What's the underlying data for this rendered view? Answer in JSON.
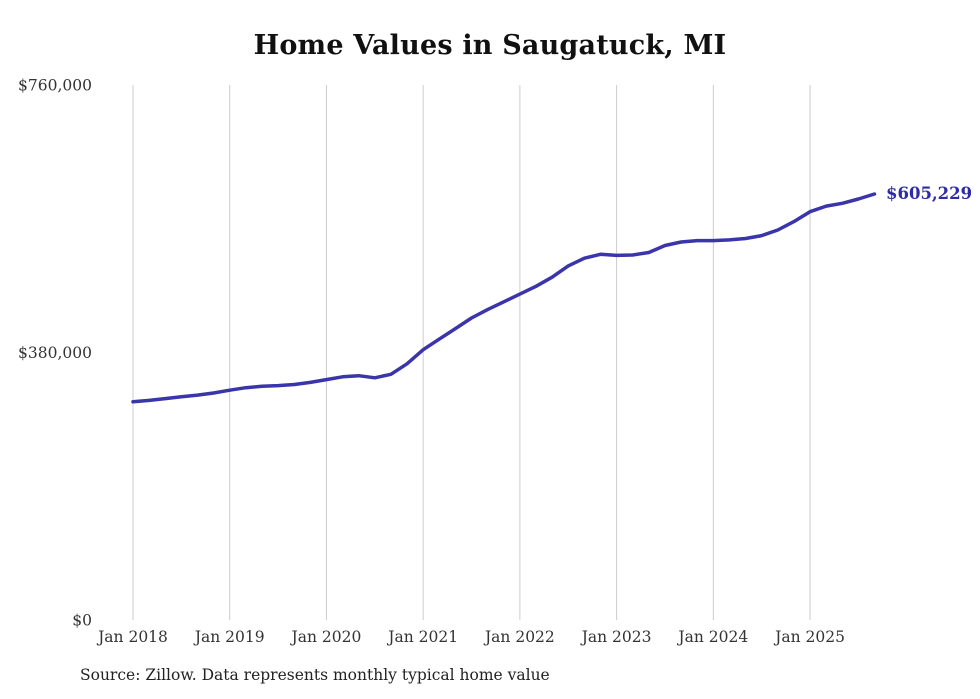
{
  "title": "Home Values in Saugatuck, MI",
  "source_note": "Source: Zillow. Data represents monthly typical home value",
  "latest_value_label": "$605,229",
  "colors": {
    "line": "#3a35aa",
    "latest_label": "#2f2ba8",
    "grid": "#cccccc",
    "tick_text": "#333333"
  },
  "chart_data": {
    "type": "line",
    "title": "Home Values in Saugatuck, MI",
    "xlabel": "",
    "ylabel": "",
    "ylim": [
      0,
      760000
    ],
    "grid": "vertical-only",
    "legend": "none",
    "x_unit": "months since Jan 2018",
    "y_ticks": [
      {
        "v": 0,
        "label": "$0"
      },
      {
        "v": 380000,
        "label": "$380,000"
      },
      {
        "v": 760000,
        "label": "$760,000"
      }
    ],
    "x_ticks": [
      {
        "m": 0,
        "label": "Jan 2018"
      },
      {
        "m": 12,
        "label": "Jan 2019"
      },
      {
        "m": 24,
        "label": "Jan 2020"
      },
      {
        "m": 36,
        "label": "Jan 2021"
      },
      {
        "m": 48,
        "label": "Jan 2022"
      },
      {
        "m": 60,
        "label": "Jan 2023"
      },
      {
        "m": 72,
        "label": "Jan 2024"
      },
      {
        "m": 84,
        "label": "Jan 2025"
      }
    ],
    "series": [
      {
        "name": "Monthly typical home value",
        "points": [
          [
            0,
            310000
          ],
          [
            2,
            312000
          ],
          [
            4,
            314500
          ],
          [
            6,
            317000
          ],
          [
            8,
            319500
          ],
          [
            10,
            322500
          ],
          [
            12,
            326500
          ],
          [
            14,
            330000
          ],
          [
            16,
            332000
          ],
          [
            18,
            333000
          ],
          [
            20,
            334500
          ],
          [
            22,
            337500
          ],
          [
            24,
            341500
          ],
          [
            26,
            345500
          ],
          [
            28,
            347000
          ],
          [
            30,
            344000
          ],
          [
            32,
            349000
          ],
          [
            34,
            364000
          ],
          [
            36,
            384000
          ],
          [
            38,
            399000
          ],
          [
            40,
            414000
          ],
          [
            42,
            429000
          ],
          [
            44,
            441000
          ],
          [
            46,
            452000
          ],
          [
            48,
            463000
          ],
          [
            50,
            474000
          ],
          [
            52,
            487000
          ],
          [
            54,
            503000
          ],
          [
            56,
            514000
          ],
          [
            58,
            519500
          ],
          [
            60,
            518000
          ],
          [
            62,
            518500
          ],
          [
            64,
            522000
          ],
          [
            66,
            532000
          ],
          [
            68,
            537000
          ],
          [
            70,
            539000
          ],
          [
            72,
            539000
          ],
          [
            74,
            540000
          ],
          [
            76,
            542000
          ],
          [
            78,
            546000
          ],
          [
            80,
            554000
          ],
          [
            82,
            566000
          ],
          [
            84,
            580000
          ],
          [
            86,
            588000
          ],
          [
            88,
            592000
          ],
          [
            90,
            598000
          ],
          [
            92,
            605229
          ]
        ]
      }
    ],
    "latest_value": 605229
  }
}
